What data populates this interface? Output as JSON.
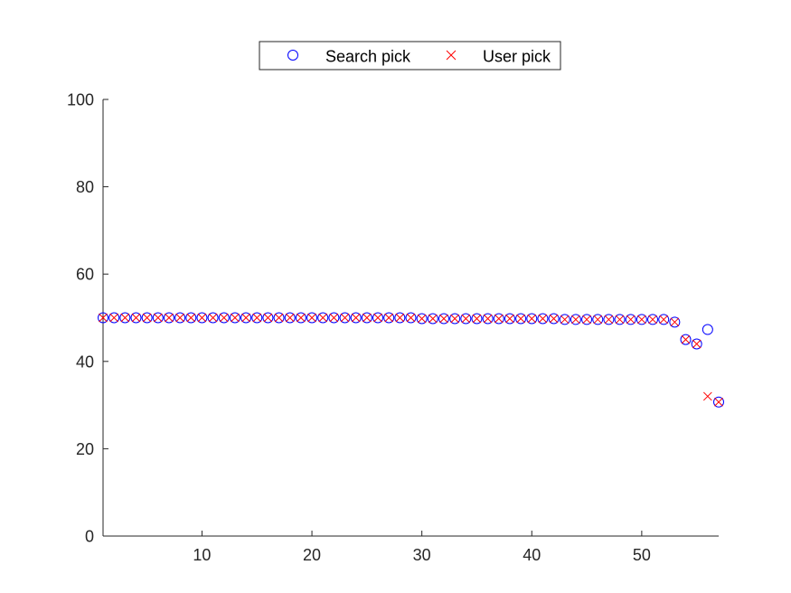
{
  "chart_data": {
    "type": "scatter",
    "title": "",
    "xlabel": "",
    "ylabel": "",
    "xlim": [
      1,
      57
    ],
    "ylim": [
      0,
      100
    ],
    "x_ticks": [
      10,
      20,
      30,
      40,
      50
    ],
    "y_ticks": [
      0,
      20,
      40,
      60,
      80,
      100
    ],
    "grid": false,
    "legend_position": "top-center",
    "x": [
      1,
      2,
      3,
      4,
      5,
      6,
      7,
      8,
      9,
      10,
      11,
      12,
      13,
      14,
      15,
      16,
      17,
      18,
      19,
      20,
      21,
      22,
      23,
      24,
      25,
      26,
      27,
      28,
      29,
      30,
      31,
      32,
      33,
      34,
      35,
      36,
      37,
      38,
      39,
      40,
      41,
      42,
      43,
      44,
      45,
      46,
      47,
      48,
      49,
      50,
      51,
      52,
      53,
      54,
      55,
      56,
      57
    ],
    "series": [
      {
        "name": "Search pick",
        "marker": "circle",
        "color": "#0000ff",
        "values": [
          50,
          50,
          50,
          50,
          50,
          50,
          50,
          50,
          50,
          50,
          50,
          50,
          50,
          50,
          50,
          50,
          50,
          50,
          50,
          50,
          50,
          50,
          50,
          50,
          50,
          50,
          50,
          50,
          50,
          49.8,
          49.8,
          49.8,
          49.8,
          49.8,
          49.8,
          49.8,
          49.8,
          49.8,
          49.8,
          49.8,
          49.8,
          49.8,
          49.6,
          49.6,
          49.6,
          49.6,
          49.6,
          49.6,
          49.6,
          49.6,
          49.6,
          49.6,
          49,
          45,
          44,
          47.3,
          30.7
        ]
      },
      {
        "name": "User pick",
        "marker": "x",
        "color": "#ff0000",
        "values": [
          50,
          50,
          50,
          50,
          50,
          50,
          50,
          50,
          50,
          50,
          50,
          50,
          50,
          50,
          50,
          50,
          50,
          50,
          50,
          50,
          50,
          50,
          50,
          50,
          50,
          50,
          50,
          50,
          50,
          49.8,
          49.8,
          49.8,
          49.8,
          49.8,
          49.8,
          49.8,
          49.8,
          49.8,
          49.8,
          49.8,
          49.8,
          49.8,
          49.6,
          49.6,
          49.6,
          49.6,
          49.6,
          49.6,
          49.6,
          49.6,
          49.6,
          49.6,
          49,
          45,
          44,
          32,
          30.7
        ]
      }
    ]
  }
}
